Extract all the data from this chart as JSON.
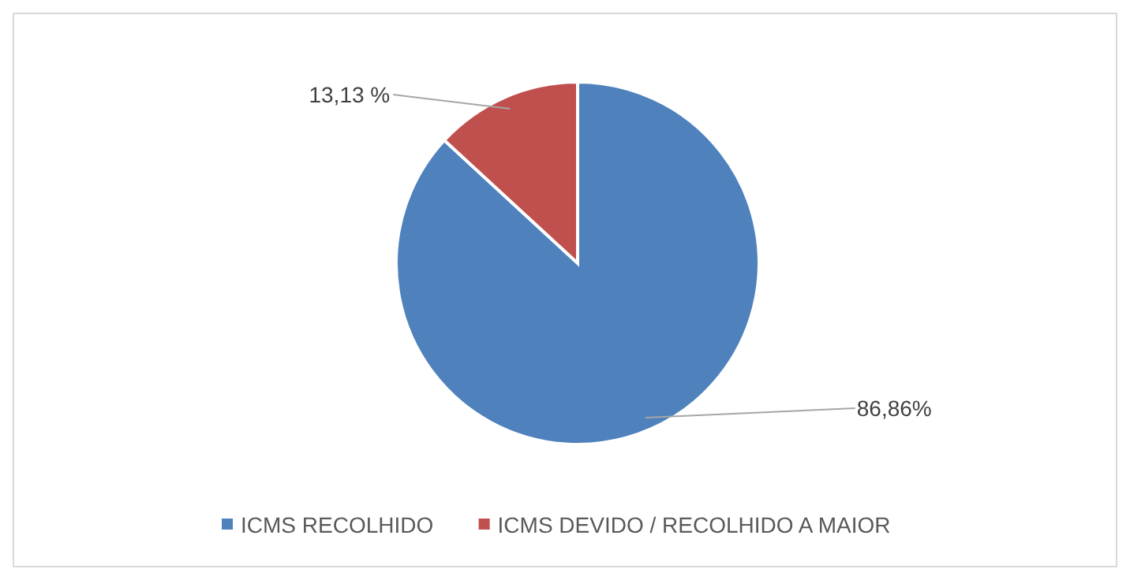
{
  "chart_data": {
    "type": "pie",
    "categories": [
      "ICMS RECOLHIDO",
      "ICMS DEVIDO / RECOLHIDO A MAIOR"
    ],
    "values": [
      86.86,
      13.13
    ],
    "colors": [
      "#4f81bd",
      "#c0504d"
    ],
    "value_labels": [
      "86,86%",
      "13,13 %"
    ],
    "legend": "bottom"
  }
}
